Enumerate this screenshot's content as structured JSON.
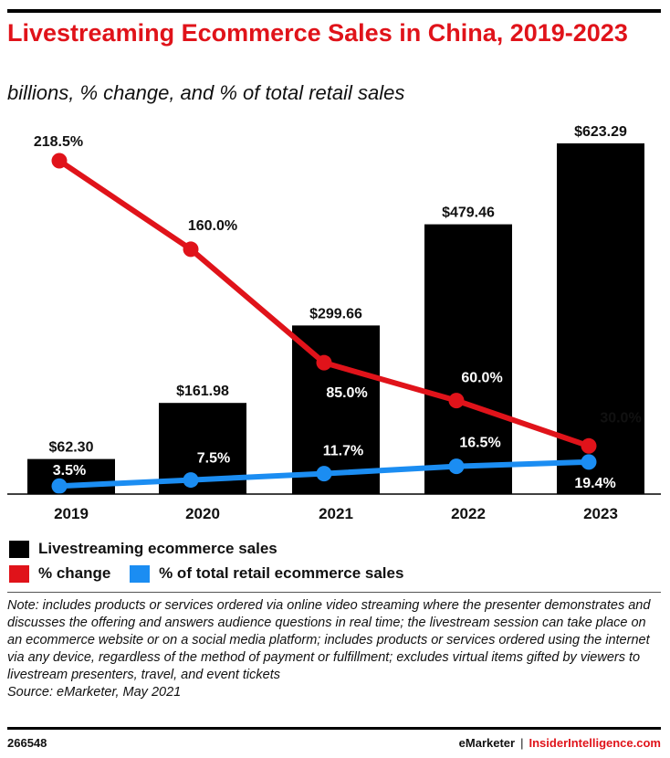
{
  "header": {
    "title": "Livestreaming Ecommerce Sales in China, 2019-2023",
    "subtitle": "billions, % change, and % of total retail sales"
  },
  "legend": {
    "sales": "Livestreaming ecommerce sales",
    "change": "% change",
    "retail_share": "% of total retail ecommerce sales"
  },
  "note": "Note: includes products or services ordered via online video streaming where the presenter demonstrates and discusses the offering and answers audience questions in real time; the livestream session can take place on an ecommerce website or on a social media platform; includes products or services ordered using the internet via any device, regardless of the method of payment or fulfillment; excludes virtual items gifted by viewers to livestream presenters, travel, and event tickets",
  "source": "Source: eMarketer, May 2021",
  "footer": {
    "chart_id": "266548",
    "brand_left": "eMarketer",
    "separator": "|",
    "brand_right": "InsiderIntelligence.com"
  },
  "colors": {
    "bars": "#000000",
    "change_line": "#e0131a",
    "share_line": "#1b8df2",
    "title": "#e0131a"
  },
  "chart_data": {
    "type": "bar",
    "categories": [
      "2019",
      "2020",
      "2021",
      "2022",
      "2023"
    ],
    "series": [
      {
        "name": "Livestreaming ecommerce sales",
        "type": "bar",
        "values": [
          62.3,
          161.98,
          299.66,
          479.46,
          623.29
        ],
        "labels": [
          "$62.30",
          "$161.98",
          "$299.66",
          "$479.46",
          "$623.29"
        ]
      },
      {
        "name": "% change",
        "type": "line",
        "values": [
          218.5,
          160.0,
          85.0,
          60.0,
          30.0
        ],
        "labels": [
          "218.5%",
          "160.0%",
          "85.0%",
          "60.0%",
          "30.0%"
        ]
      },
      {
        "name": "% of total retail ecommerce sales",
        "type": "line",
        "values": [
          3.5,
          7.5,
          11.7,
          16.5,
          19.4
        ],
        "labels": [
          "3.5%",
          "7.5%",
          "11.7%",
          "16.5%",
          "19.4%"
        ]
      }
    ],
    "ylim_sales": [
      0,
      623.29
    ],
    "ylim_percent": [
      0,
      218.5
    ],
    "grid": false,
    "legend_position": "bottom"
  }
}
